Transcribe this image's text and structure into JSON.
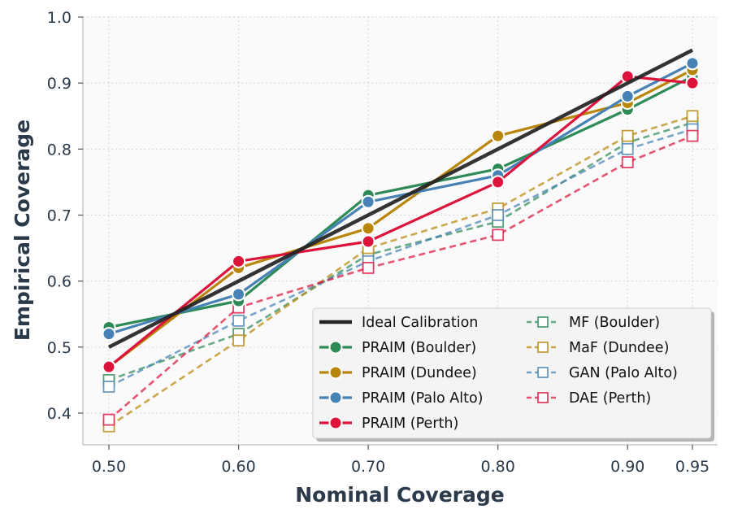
{
  "chart_data": {
    "type": "line",
    "xlabel": "Nominal Coverage",
    "ylabel": "Empirical Coverage",
    "x": [
      0.5,
      0.6,
      0.7,
      0.8,
      0.9,
      0.95
    ],
    "x_tick_labels": [
      "0.50",
      "0.60",
      "0.70",
      "0.80",
      "0.90",
      "0.95"
    ],
    "y_ticks": [
      0.4,
      0.5,
      0.6,
      0.7,
      0.8,
      0.9,
      1.0
    ],
    "y_tick_labels": [
      "0.4",
      "0.5",
      "0.6",
      "0.7",
      "0.8",
      "0.9",
      "1.0"
    ],
    "xlim": [
      0.48,
      0.97
    ],
    "ylim": [
      0.35,
      1.0
    ],
    "grid": true,
    "legend_position": "lower-right",
    "series": [
      {
        "name": "PRAIM (Boulder)",
        "color": "#2e8b57",
        "style": "solid",
        "marker": "filled-circle",
        "values": [
          0.53,
          0.57,
          0.73,
          0.77,
          0.86,
          0.91
        ]
      },
      {
        "name": "PRAIM (Dundee)",
        "color": "#b8860b",
        "style": "solid",
        "marker": "filled-circle",
        "values": [
          0.47,
          0.62,
          0.68,
          0.82,
          0.87,
          0.92
        ]
      },
      {
        "name": "PRAIM (Palo Alto)",
        "color": "#4682b4",
        "style": "solid",
        "marker": "filled-circle",
        "values": [
          0.52,
          0.58,
          0.72,
          0.76,
          0.88,
          0.93
        ]
      },
      {
        "name": "PRAIM (Perth)",
        "color": "#dc143c",
        "style": "solid",
        "marker": "filled-circle",
        "values": [
          0.47,
          0.63,
          0.66,
          0.75,
          0.91,
          0.9
        ]
      },
      {
        "name": "MF (Boulder)",
        "color": "#2e8b57",
        "style": "dashed",
        "marker": "open-square",
        "values": [
          0.45,
          0.52,
          0.64,
          0.69,
          0.81,
          0.84
        ]
      },
      {
        "name": "MaF (Dundee)",
        "color": "#b8860b",
        "style": "dashed",
        "marker": "open-square",
        "values": [
          0.38,
          0.51,
          0.65,
          0.71,
          0.82,
          0.85
        ]
      },
      {
        "name": "GAN (Palo Alto)",
        "color": "#4682b4",
        "style": "dashed",
        "marker": "open-square",
        "values": [
          0.44,
          0.54,
          0.63,
          0.7,
          0.8,
          0.83
        ]
      },
      {
        "name": "DAE (Perth)",
        "color": "#dc143c",
        "style": "dashed",
        "marker": "open-square",
        "values": [
          0.39,
          0.56,
          0.62,
          0.67,
          0.78,
          0.82
        ]
      }
    ],
    "reference_line": {
      "name": "Ideal Calibration",
      "color": "#222222",
      "x": [
        0.5,
        0.95
      ],
      "y": [
        0.5,
        0.95
      ]
    },
    "legend_items": [
      "Ideal Calibration",
      "PRAIM (Boulder)",
      "PRAIM (Dundee)",
      "PRAIM (Palo Alto)",
      "PRAIM (Perth)",
      "MF (Boulder)",
      "MaF (Dundee)",
      "GAN (Palo Alto)",
      "DAE (Perth)"
    ]
  }
}
